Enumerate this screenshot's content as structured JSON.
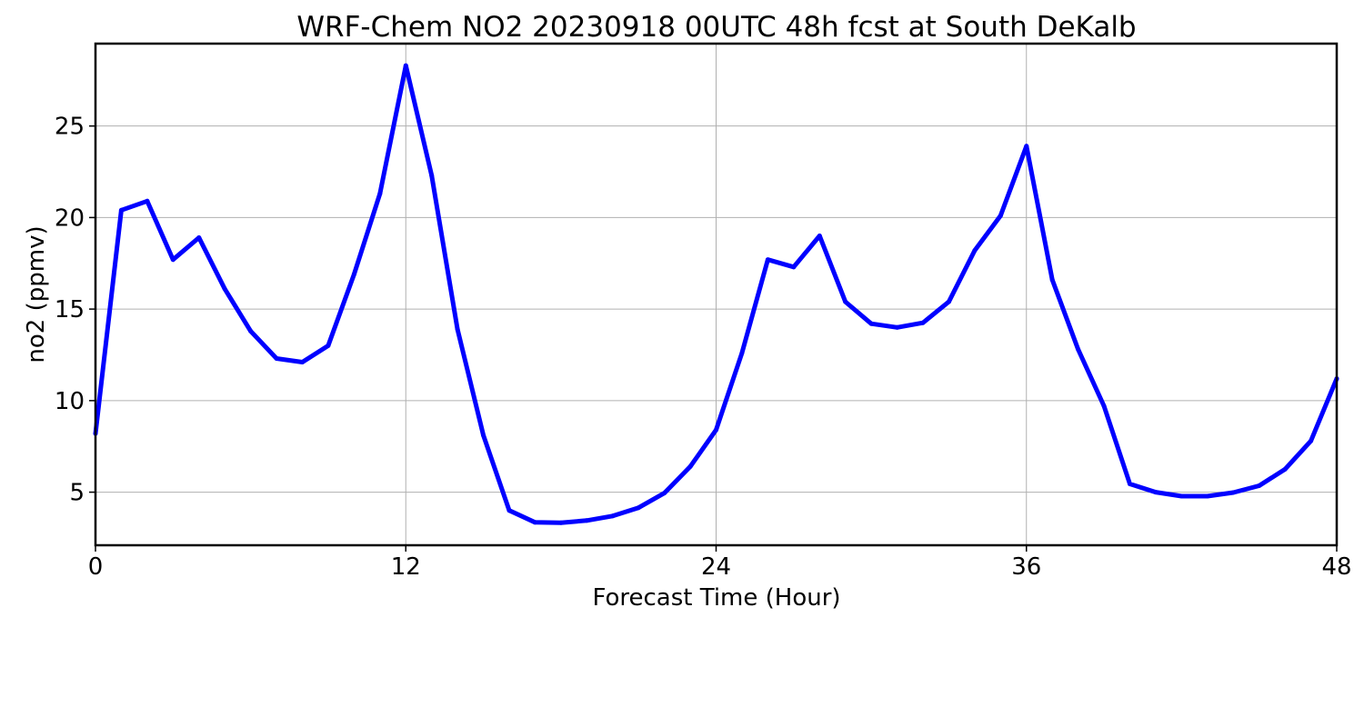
{
  "chart_data": {
    "type": "line",
    "title": "WRF-Chem NO2  20230918 00UTC 48h fcst at South DeKalb",
    "xlabel": "Forecast Time (Hour)",
    "ylabel": "no2  (ppmv)",
    "xlim": [
      0,
      48
    ],
    "ylim": [
      2.1,
      29.5
    ],
    "xticks": [
      0,
      12,
      24,
      36,
      48
    ],
    "yticks": [
      5,
      10,
      15,
      20,
      25
    ],
    "grid": true,
    "series": [
      {
        "color": "#0000ff",
        "x": [
          0,
          1,
          2,
          3,
          4,
          5,
          6,
          7,
          8,
          9,
          10,
          11,
          12,
          13,
          14,
          15,
          16,
          17,
          18,
          19,
          20,
          21,
          22,
          23,
          24,
          25,
          26,
          27,
          28,
          29,
          30,
          31,
          32,
          33,
          34,
          35,
          36,
          37,
          38,
          39,
          40,
          41,
          42,
          43,
          44,
          45,
          46,
          47,
          48
        ],
        "y": [
          8.2,
          20.4,
          20.9,
          17.7,
          18.9,
          16.1,
          13.8,
          12.3,
          12.1,
          13.0,
          16.9,
          21.3,
          28.3,
          22.3,
          13.9,
          8.1,
          4.0,
          3.35,
          3.33,
          3.45,
          3.7,
          4.15,
          4.95,
          6.4,
          8.4,
          12.6,
          17.7,
          17.3,
          19.0,
          15.4,
          14.2,
          14.0,
          14.25,
          15.4,
          18.2,
          20.1,
          23.9,
          16.6,
          12.8,
          9.7,
          5.45,
          5.0,
          4.78,
          4.78,
          4.98,
          5.35,
          6.25,
          7.8,
          11.2
        ]
      }
    ]
  }
}
